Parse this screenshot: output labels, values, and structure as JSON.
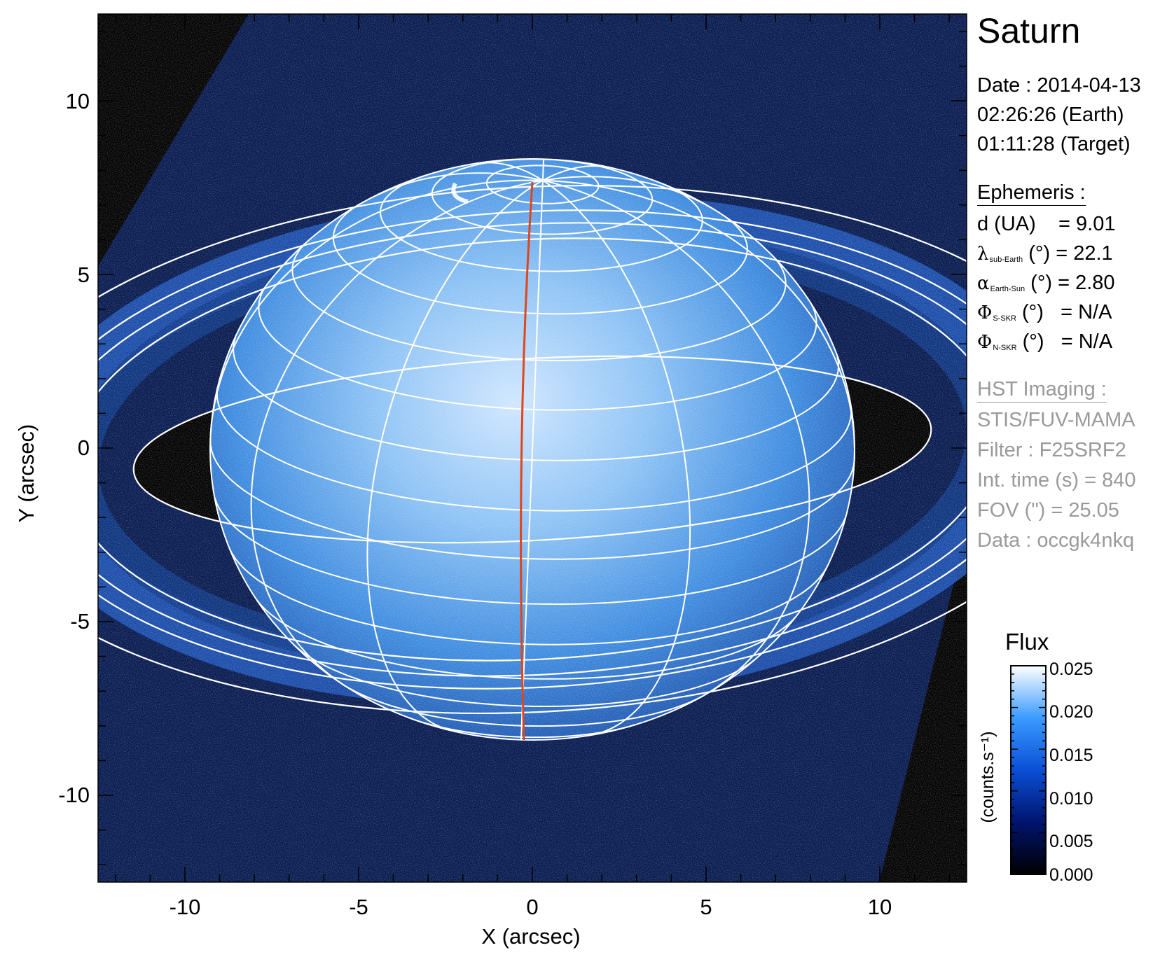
{
  "chart_data": {
    "type": "heatmap",
    "title": "Saturn",
    "xlabel": "X (arcsec)",
    "ylabel": "Y (arcsec)",
    "xlim": [
      -12.5,
      12.5
    ],
    "ylim": [
      -12.5,
      12.5
    ],
    "x_ticks": [
      "-10",
      "-5",
      "0",
      "5",
      "10"
    ],
    "y_ticks": [
      "10",
      "5",
      "0",
      "-5",
      "-10"
    ],
    "colorbar": {
      "title": "Flux",
      "unit": "(counts.s⁻¹)",
      "ticks": [
        "0.025",
        "0.020",
        "0.015",
        "0.010",
        "0.005",
        "0.000"
      ],
      "range": [
        0.0,
        0.025
      ],
      "colors": [
        "#000000",
        "#00146e",
        "#0a4fd6",
        "#3a9bff",
        "#ffffff"
      ]
    },
    "info": {
      "date": "Date : 2014-04-13",
      "time_earth": "02:26:26 (Earth)",
      "time_target": "01:11:28 (Target)",
      "ephemeris_header": "Ephemeris :",
      "d_label": "d (UA)",
      "d_value": "= 9.01",
      "lambda_sym": "λ",
      "lambda_sub": "sub-Earth",
      "lambda_value": "(°) = 22.1",
      "alpha_sym": "α",
      "alpha_sub": "Earth-Sun",
      "alpha_value": "(°) = 2.80",
      "phi_s_sym": "Φ",
      "phi_s_sub": "S-SKR",
      "phi_s_value": "(°)   = N/A",
      "phi_n_sym": "Φ",
      "phi_n_sub": "N-SKR",
      "phi_n_value": "(°)   = N/A",
      "hst_header": "HST Imaging :",
      "instrument": "STIS/FUV-MAMA",
      "filter": "Filter : F25SRF2",
      "int_time": "Int. time (s) = 840",
      "fov": "FOV (\") = 25.05",
      "data_id": "Data : occgk4nkq"
    },
    "overlay_colors": {
      "grid": "#ffffff",
      "meridian": "#e0461a",
      "background": "#000000"
    }
  }
}
